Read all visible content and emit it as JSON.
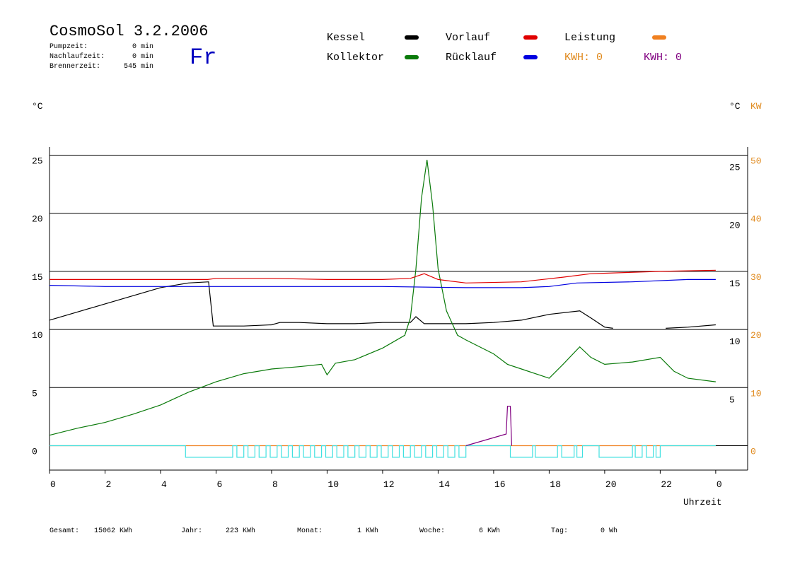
{
  "header": {
    "title": "CosmoSol 3.2.2006",
    "day": "Fr",
    "stats": [
      {
        "label": "Pumpzeit:",
        "value": "0 min"
      },
      {
        "label": "Nachlaufzeit:",
        "value": "0 min"
      },
      {
        "label": "Brennerzeit:",
        "value": "545 min"
      }
    ]
  },
  "kwh": [
    {
      "text": "KWH: 0",
      "color": "#e08a1e"
    },
    {
      "text": "KWH: 0",
      "color": "#800080"
    }
  ],
  "footer": [
    {
      "label": "Gesamt:",
      "value": "15062 KWh"
    },
    {
      "label": "Jahr:",
      "value": "223 KWh"
    },
    {
      "label": "Monat:",
      "value": "1 KWh"
    },
    {
      "label": "Woche:",
      "value": "6 KWh"
    },
    {
      "label": "Tag:",
      "value": "0 Wh"
    }
  ],
  "chart_data": {
    "type": "line",
    "y_label": "°C",
    "y2_label": "°C",
    "y2_unit_label": "KW",
    "x_label": "Uhrzeit",
    "xlim": [
      0,
      25.15
    ],
    "xticks": [
      0,
      2,
      4,
      6,
      8,
      10,
      12,
      14,
      16,
      18,
      20,
      22,
      {
        "value": 24,
        "label": "0"
      }
    ],
    "ylim": [
      -2.1,
      25.7
    ],
    "yticks": [
      0,
      5,
      10,
      15,
      20,
      25
    ],
    "y2lim": [
      -4.2,
      51.4
    ],
    "y2ticks": [
      0,
      10,
      20,
      30,
      40,
      50
    ],
    "grid": true,
    "series": [
      {
        "name": "Kessel",
        "color": "#000000",
        "x": [
          0,
          1,
          2,
          3,
          4,
          5,
          5.73,
          5.9,
          6.5,
          7,
          8,
          8.3,
          9,
          10,
          11,
          12,
          13,
          13.2,
          13.5,
          14,
          15,
          16,
          17,
          18,
          19.1,
          19.5,
          20,
          20.3,
          21,
          22.2,
          23,
          24
        ],
        "values": [
          10.8,
          11.5,
          12.2,
          12.9,
          13.6,
          14.0,
          14.1,
          10.3,
          10.3,
          10.3,
          10.4,
          10.6,
          10.6,
          10.5,
          10.5,
          10.6,
          10.6,
          11.1,
          10.5,
          10.5,
          10.5,
          10.6,
          10.8,
          11.3,
          11.6,
          11.0,
          10.2,
          10.1,
          null,
          10.1,
          10.2,
          10.4
        ]
      },
      {
        "name": "Kollektor",
        "color": "#0a7a0a",
        "x": [
          0,
          1,
          2,
          3,
          4,
          5,
          6,
          7,
          8,
          9,
          9.8,
          10,
          10.3,
          11,
          12,
          12.8,
          13,
          13.2,
          13.4,
          13.6,
          13.8,
          14,
          14.3,
          14.7,
          15,
          16,
          16.5,
          17,
          18,
          18.5,
          19.1,
          19.5,
          20,
          21,
          22,
          22.5,
          23,
          24
        ],
        "values": [
          0.9,
          1.5,
          2.0,
          2.7,
          3.5,
          4.6,
          5.5,
          6.2,
          6.6,
          6.8,
          7.0,
          6.1,
          7.1,
          7.4,
          8.4,
          9.5,
          11.0,
          15.2,
          21.3,
          24.6,
          20.7,
          15.2,
          11.6,
          9.5,
          9.1,
          7.9,
          7.0,
          6.6,
          5.8,
          7.0,
          8.5,
          7.6,
          7.0,
          7.2,
          7.6,
          6.4,
          5.8,
          5.5
        ]
      },
      {
        "name": "Vorlauf",
        "color": "#e00000",
        "x": [
          0,
          5.7,
          6,
          8,
          10,
          12,
          13,
          13.5,
          14,
          15,
          17,
          18.5,
          19.5,
          22,
          24
        ],
        "values": [
          14.3,
          14.3,
          14.4,
          14.4,
          14.3,
          14.3,
          14.4,
          14.8,
          14.3,
          14.0,
          14.1,
          14.5,
          14.8,
          15.0,
          15.1
        ]
      },
      {
        "name": "Rücklauf",
        "color": "#0000e0",
        "x": [
          0,
          2,
          8,
          12,
          15,
          17,
          18,
          19,
          21,
          23,
          24
        ],
        "values": [
          13.8,
          13.7,
          13.7,
          13.7,
          13.6,
          13.6,
          13.7,
          14.0,
          14.1,
          14.3,
          14.3
        ]
      },
      {
        "name": "Leistung",
        "color": "#f08020",
        "axis": "y2",
        "x": [
          0,
          24
        ],
        "values": [
          0,
          0
        ]
      },
      {
        "color": "#40e0e0",
        "x": [
          0,
          4.9,
          4.9,
          6.6,
          6.6,
          6.75,
          6.75,
          7.0,
          7.0,
          7.15,
          7.15,
          7.4,
          7.4,
          7.55,
          7.55,
          7.8,
          7.8,
          7.95,
          7.95,
          8.2,
          8.2,
          8.35,
          8.35,
          8.6,
          8.6,
          8.75,
          8.75,
          9.0,
          9.0,
          9.15,
          9.15,
          9.4,
          9.4,
          9.55,
          9.55,
          9.8,
          9.8,
          9.95,
          9.95,
          10.2,
          10.2,
          10.35,
          10.35,
          10.6,
          10.6,
          10.75,
          10.75,
          11.0,
          11.0,
          11.15,
          11.15,
          11.4,
          11.4,
          11.55,
          11.55,
          11.8,
          11.8,
          11.95,
          11.95,
          12.2,
          12.2,
          12.35,
          12.35,
          12.6,
          12.6,
          12.75,
          12.75,
          13.0,
          13.0,
          13.15,
          13.15,
          13.4,
          13.4,
          13.55,
          13.55,
          13.8,
          13.8,
          13.95,
          13.95,
          14.2,
          14.2,
          14.35,
          14.35,
          14.6,
          14.6,
          14.75,
          14.75,
          15.0,
          15.0,
          16.6,
          16.6,
          17.4,
          17.4,
          17.5,
          17.5,
          18.3,
          18.3,
          18.45,
          18.45,
          18.9,
          18.9,
          19.0,
          19.0,
          19.2,
          19.2,
          19.8,
          19.8,
          21.0,
          21.0,
          21.1,
          21.1,
          21.35,
          21.35,
          21.5,
          21.5,
          21.75,
          21.75,
          21.85,
          21.85,
          22.0,
          22.0,
          24
        ],
        "values": [
          0,
          0,
          -1,
          -1,
          0,
          0,
          -1,
          -1,
          0,
          0,
          -1,
          -1,
          0,
          0,
          -1,
          -1,
          0,
          0,
          -1,
          -1,
          0,
          0,
          -1,
          -1,
          0,
          0,
          -1,
          -1,
          0,
          0,
          -1,
          -1,
          0,
          0,
          -1,
          -1,
          0,
          0,
          -1,
          -1,
          0,
          0,
          -1,
          -1,
          0,
          0,
          -1,
          -1,
          0,
          0,
          -1,
          -1,
          0,
          0,
          -1,
          -1,
          0,
          0,
          -1,
          -1,
          0,
          0,
          -1,
          -1,
          0,
          0,
          -1,
          -1,
          0,
          0,
          -1,
          -1,
          0,
          0,
          -1,
          -1,
          0,
          0,
          -1,
          -1,
          0,
          0,
          -1,
          -1,
          0,
          0,
          -1,
          -1,
          0,
          0,
          -1,
          -1,
          0,
          0,
          -1,
          -1,
          0,
          0,
          -1,
          -1,
          0,
          0,
          -1,
          -1,
          0,
          0,
          -1,
          -1,
          0,
          0,
          -1,
          -1,
          0,
          0,
          -1,
          -1,
          0,
          0,
          -1,
          -1,
          0,
          0
        ]
      },
      {
        "color": "#800080",
        "axis": "y2",
        "x": [
          15,
          16.45,
          16.5,
          16.6,
          16.65
        ],
        "values": [
          0,
          2.0,
          6.8,
          6.8,
          0
        ]
      }
    ]
  }
}
